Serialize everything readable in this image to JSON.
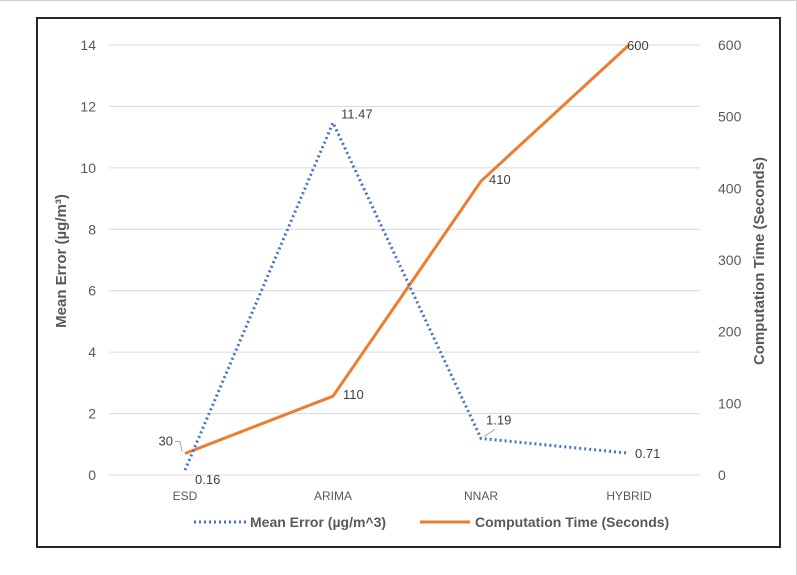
{
  "chart_data": {
    "type": "line",
    "categories": [
      "ESD",
      "ARIMA",
      "NNAR",
      "HYBRID"
    ],
    "series": [
      {
        "name": "Mean Error (µg/m^3)",
        "axis": "left",
        "values": [
          0.16,
          11.47,
          1.19,
          0.71
        ],
        "data_labels": [
          "0.16",
          "11.47",
          "1.19",
          "0.71"
        ],
        "color": "#4472C4",
        "style": "dotted"
      },
      {
        "name": "Computation Time (Seconds)",
        "axis": "right",
        "values": [
          30,
          110,
          410,
          600
        ],
        "data_labels": [
          "30",
          "110",
          "410",
          "600"
        ],
        "color": "#ED7D31",
        "style": "solid"
      }
    ],
    "ylabel": "Mean Error (µg/m³)",
    "ylabel_right": "Computation Time (Seconds)",
    "ylim": [
      0,
      14
    ],
    "ylim_right": [
      0,
      600
    ],
    "yticks": [
      "0",
      "2",
      "4",
      "6",
      "8",
      "10",
      "12",
      "14"
    ],
    "yticks_right": [
      "0",
      "100",
      "200",
      "300",
      "400",
      "500",
      "600"
    ],
    "grid": true,
    "legend": "bottom"
  }
}
